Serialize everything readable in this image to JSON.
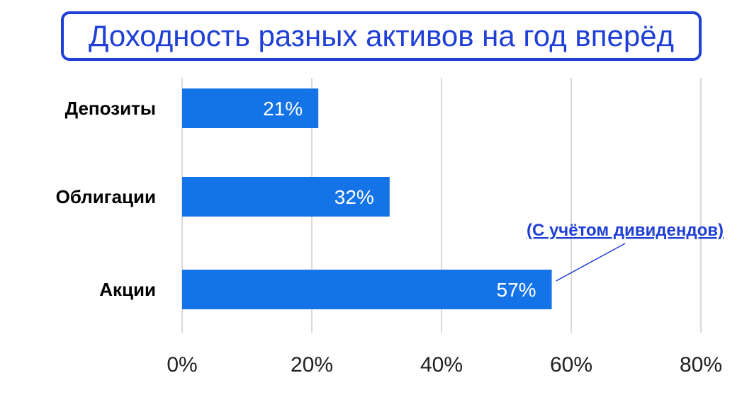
{
  "chart_data": {
    "type": "bar",
    "orientation": "horizontal",
    "title": "Доходность разных активов на год вперёд",
    "categories": [
      "Депозиты",
      "Облигации",
      "Акции"
    ],
    "values": [
      21,
      32,
      57
    ],
    "value_labels": [
      "21%",
      "32%",
      "57%"
    ],
    "xlim": [
      0,
      80
    ],
    "x_ticks": [
      0,
      20,
      40,
      60,
      80
    ],
    "x_tick_labels": [
      "0%",
      "20%",
      "40%",
      "60%",
      "80%"
    ],
    "xlabel": "",
    "ylabel": "",
    "grid": "vertical",
    "legend": "none",
    "annotation": {
      "text": "(С учётом дивидендов)",
      "target_category": "Акции"
    },
    "colors": {
      "bar": "#1473e6",
      "title": "#1f3fd6",
      "annotation": "#1f3fd6",
      "grid": "#d9d9d9"
    }
  }
}
